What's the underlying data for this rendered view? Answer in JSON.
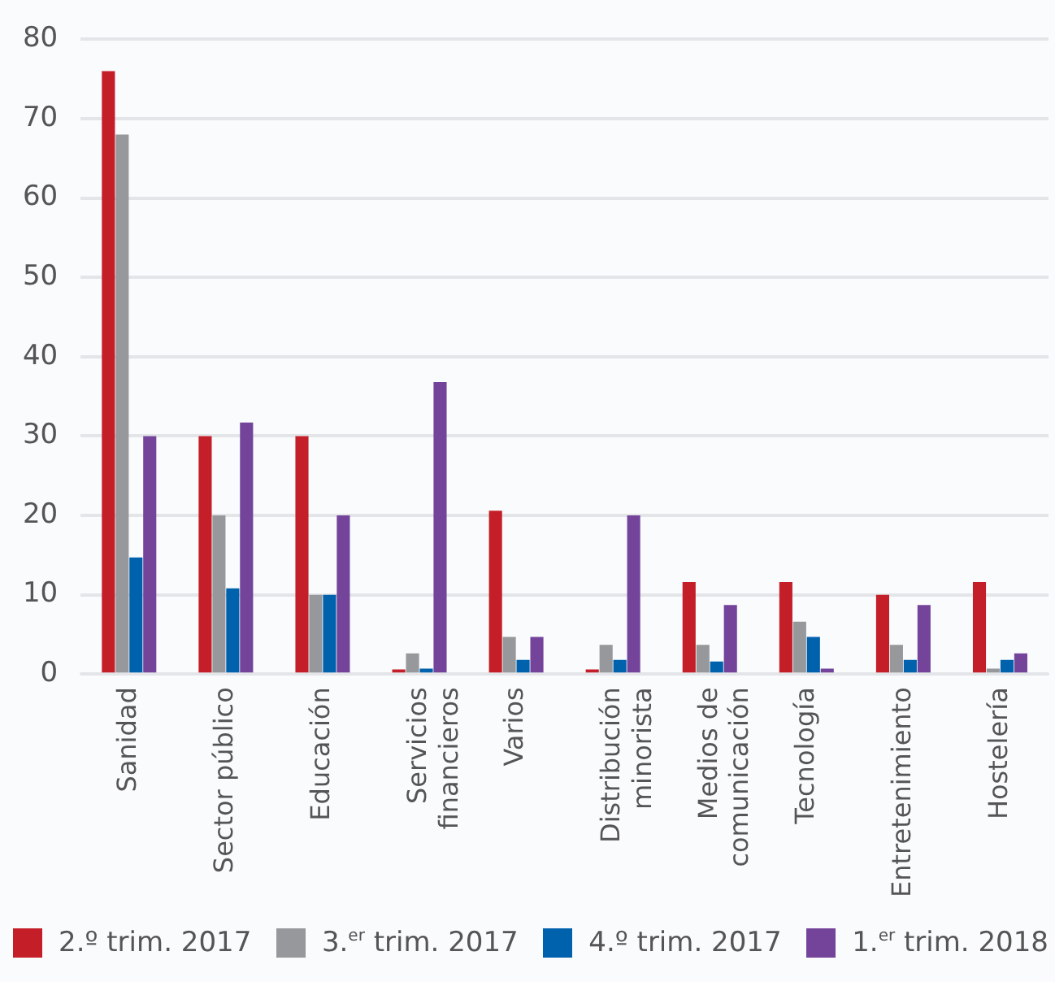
{
  "chart_data": {
    "type": "bar",
    "categories": [
      "Sanidad",
      "Sector público",
      "Educación",
      "Servicios\nfinancieros",
      "Varios",
      "Distribución\nminorista",
      "Medios de\ncomunicación",
      "Tecnología",
      "Entretenimiento",
      "Hostelería"
    ],
    "series": [
      {
        "name": "2.º trim. 2017",
        "color": "#c41f28",
        "values": [
          76,
          30,
          30,
          0.6,
          20.6,
          0.6,
          11.6,
          11.6,
          10,
          11.6
        ]
      },
      {
        "name": "3.$^{er}$ trim. 2017",
        "color": "#96989b",
        "values": [
          68,
          20,
          10,
          2.6,
          4.7,
          3.7,
          3.7,
          6.6,
          3.7,
          0.7
        ]
      },
      {
        "name": "4.º trim. 2017",
        "color": "#0061ad",
        "values": [
          14.7,
          10.8,
          10,
          0.7,
          1.8,
          1.8,
          1.6,
          4.7,
          1.8,
          1.8
        ]
      },
      {
        "name": "1.$^{er}$ trim. 2018",
        "color": "#74449a",
        "values": [
          30,
          31.7,
          20,
          36.8,
          4.7,
          20,
          8.7,
          0.7,
          8.7,
          2.6
        ]
      }
    ],
    "ylim": [
      0,
      80
    ],
    "yticks": [
      0,
      10,
      20,
      30,
      40,
      50,
      60,
      70,
      80
    ],
    "grid": "y",
    "legend": "bottom"
  }
}
